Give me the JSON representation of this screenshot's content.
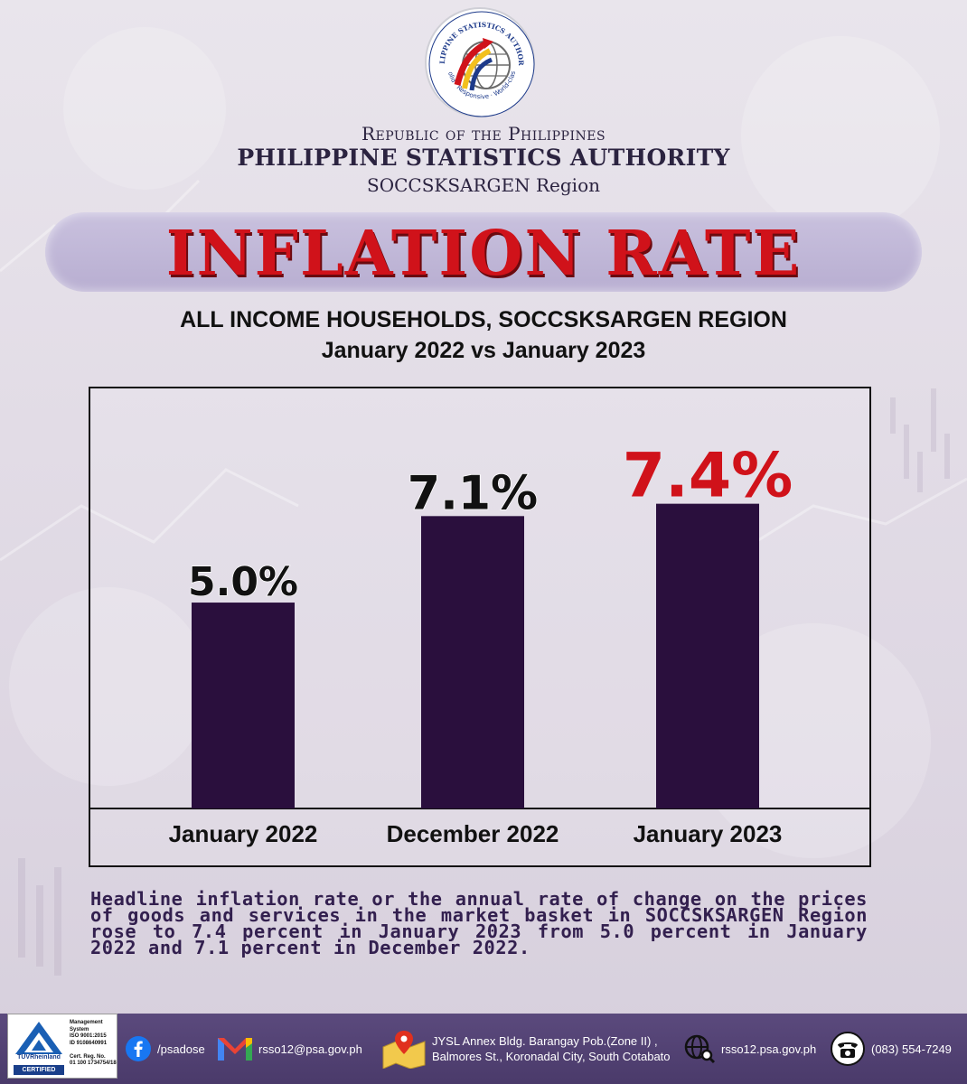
{
  "header": {
    "logo_ring_text": "PHILIPPINE STATISTICS AUTHORITY",
    "logo_tagline": "Solid · Responsive · World-class",
    "republic": "Republic of the Philippines",
    "agency": "PHILIPPINE STATISTICS AUTHORITY",
    "region": "SOCCSKSARGEN Region"
  },
  "title": "INFLATION RATE",
  "subtitle_1": "ALL INCOME HOUSEHOLDS, SOCCSKSARGEN REGION",
  "subtitle_2": "January 2022 vs January 2023",
  "chart_data": {
    "type": "bar",
    "categories": [
      "January 2022",
      "December 2022",
      "January 2023"
    ],
    "values": [
      5.0,
      7.1,
      7.4
    ],
    "value_labels": [
      "5.0%",
      "7.1%",
      "7.4%"
    ],
    "unit": "%",
    "ylim": [
      0,
      10.2
    ],
    "grid": false,
    "bar_color": "#2a0f3d",
    "label_colors": [
      "#111111",
      "#111111",
      "#d0121a"
    ]
  },
  "description": "Headline inflation rate or the annual rate of change on the prices of goods and services in the market basket in SOCCSKSARGEN Region rose to 7.4 percent in January 2023 from 5.0 percent in January 2022 and 7.1 percent in December 2022.",
  "footer": {
    "cert": {
      "name": "TÜVRheinland",
      "badge": "CERTIFIED",
      "lines": [
        "Management",
        "System",
        "ISO 9001:2015",
        "ID 9108640991",
        "",
        "Cert. Reg. No.",
        "01 100 1734754/18"
      ]
    },
    "facebook": "/psadose",
    "email": "rsso12@psa.gov.ph",
    "address_1": "JYSL Annex Bldg. Barangay Pob.(Zone II) ,",
    "address_2": "Balmores St., Koronadal City, South Cotabato",
    "website": "rsso12.psa.gov.ph",
    "phone": "(083) 554-7249"
  },
  "colors": {
    "title_red": "#d0121a",
    "bar_purple": "#2a0f3d",
    "footer_purple": "#4f3f70",
    "text_purple": "#33204f"
  }
}
